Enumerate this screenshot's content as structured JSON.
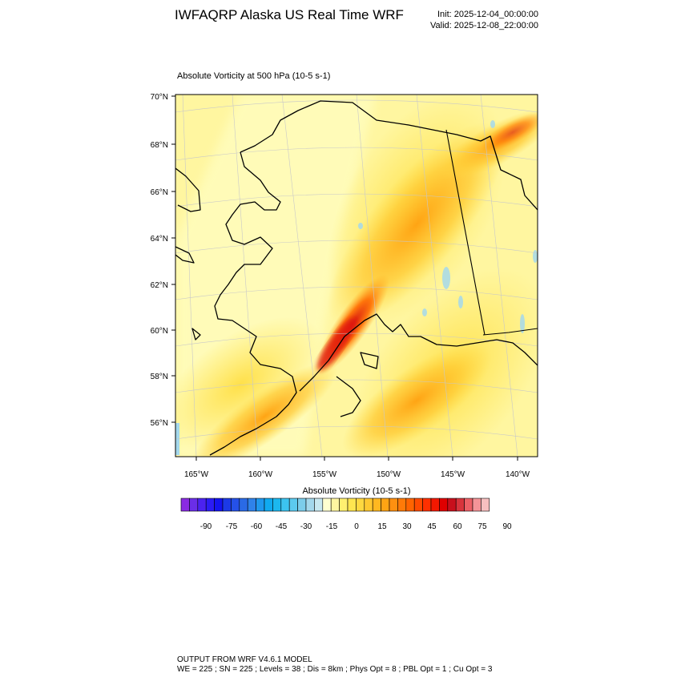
{
  "header": {
    "title": "IWFAQRP Alaska US Real Time WRF",
    "init": "Init: 2025-12-04_00:00:00",
    "valid": "Valid: 2025-12-08_22:00:00"
  },
  "plot": {
    "title": "Absolute Vorticity at 500 hPa   (10-5 s-1)"
  },
  "axes": {
    "lat_labels": [
      "70°N",
      "68°N",
      "66°N",
      "64°N",
      "62°N",
      "60°N",
      "58°N",
      "56°N"
    ],
    "lon_labels": [
      "165°W",
      "160°W",
      "155°W",
      "150°W",
      "145°W",
      "140°W"
    ]
  },
  "colorbar": {
    "title": "Absolute Vorticity  (10-5 s-1)",
    "labels": [
      "-90",
      "-75",
      "-60",
      "-45",
      "-30",
      "-15",
      "0",
      "15",
      "30",
      "45",
      "60",
      "75",
      "90"
    ],
    "colors": [
      "#8a2be2",
      "#6a2ee8",
      "#4b22f0",
      "#2b1cf5",
      "#1414f0",
      "#1c3ae6",
      "#2551e8",
      "#2a6ae6",
      "#2f82ea",
      "#1f98ee",
      "#10aaf0",
      "#1cb8ef",
      "#3cc4f0",
      "#5ccaef",
      "#7ccdeb",
      "#a4d8ec",
      "#c8e8f0",
      "#ffffd0",
      "#fff6a0",
      "#fff070",
      "#ffe550",
      "#ffd840",
      "#ffc830",
      "#ffb820",
      "#ffa414",
      "#ff9010",
      "#ff7a08",
      "#ff6400",
      "#ff4a00",
      "#ff3000",
      "#f41800",
      "#e00000",
      "#c8101c",
      "#d8343c",
      "#ec6066",
      "#f49498",
      "#f8c0c0"
    ]
  },
  "footer": {
    "line1": "OUTPUT FROM WRF V4.6.1 MODEL",
    "line2": "WE = 225 ; SN = 225 ; Levels = 38 ; Dis = 8km ; Phys Opt = 8 ; PBL Opt = 1 ; Cu Opt = 3"
  }
}
